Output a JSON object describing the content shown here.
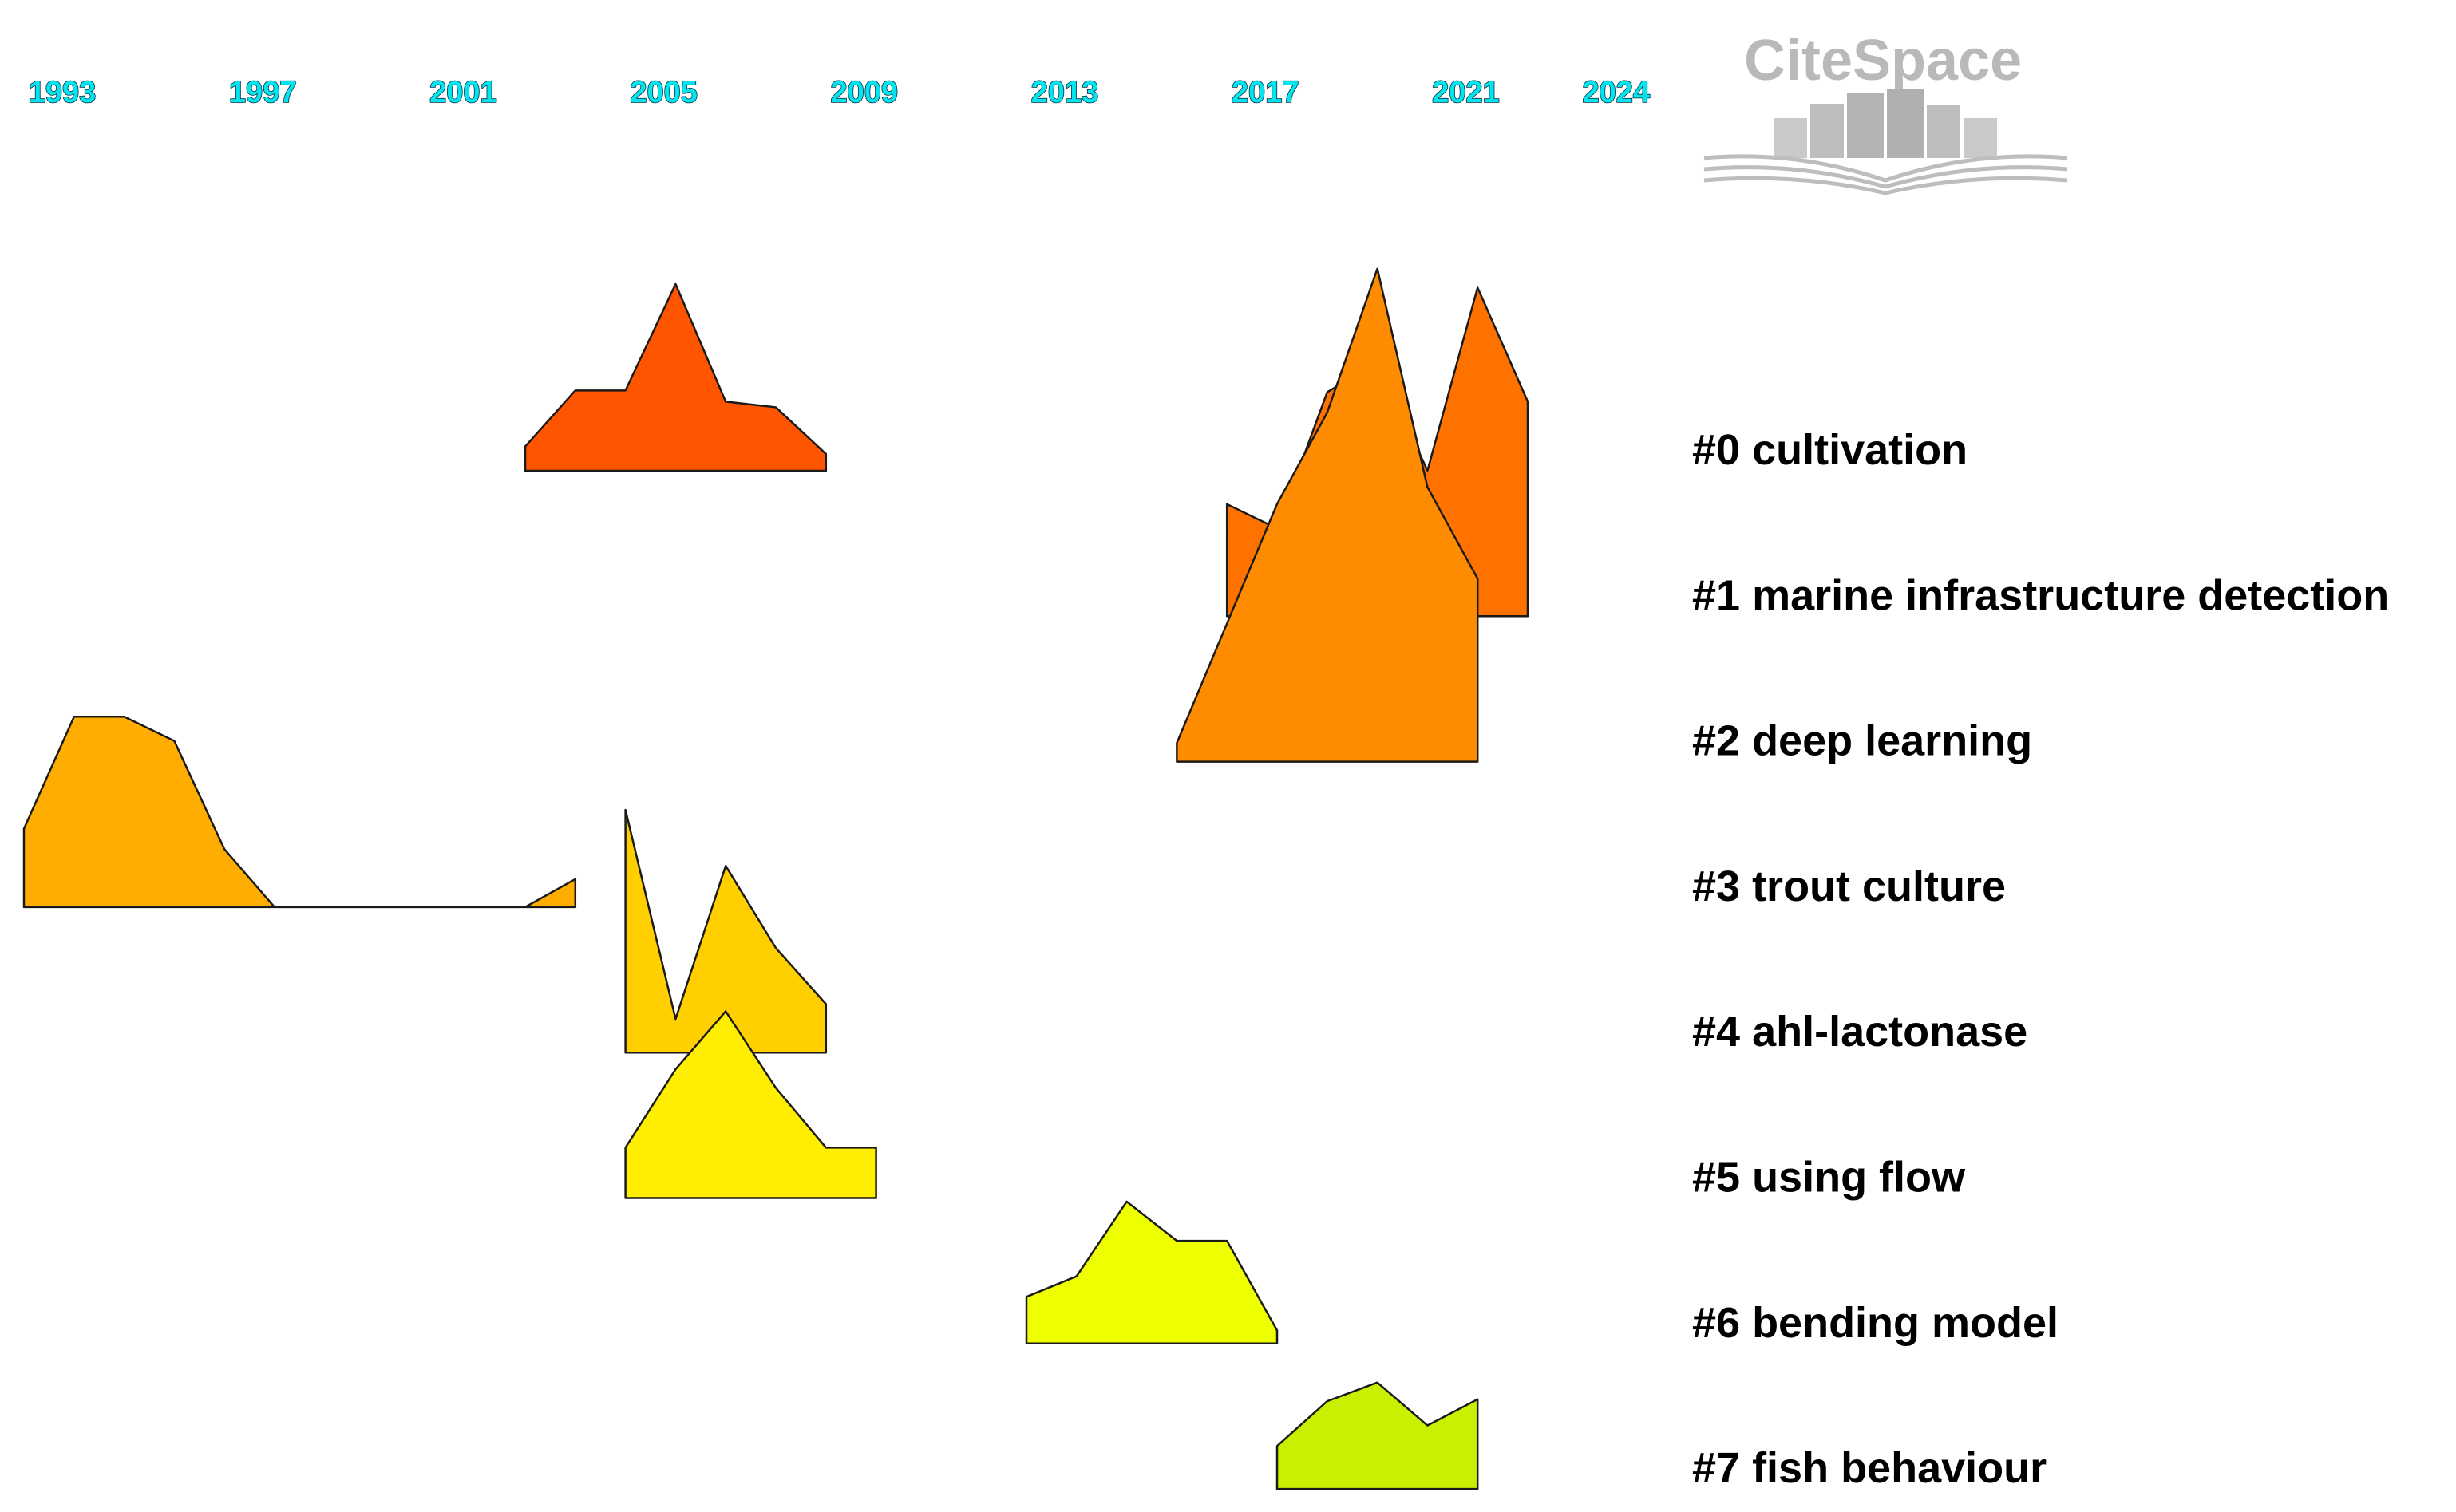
{
  "chart_data": {
    "type": "area",
    "title": "",
    "x_tick_labels": [
      "1993",
      "1997",
      "2001",
      "2005",
      "2009",
      "2013",
      "2017",
      "2021",
      "2024"
    ],
    "xlim": [
      1993,
      2025
    ],
    "series": [
      {
        "name": "#0 cultivation",
        "color": "#ff5500",
        "points": [
          [
            2003,
            0.13
          ],
          [
            2004,
            0.43
          ],
          [
            2005,
            0.43
          ],
          [
            2006,
            1.0
          ],
          [
            2007,
            0.37
          ],
          [
            2008,
            0.34
          ],
          [
            2009,
            0.09
          ],
          [
            2009,
            0.0
          ]
        ]
      },
      {
        "name": "#1 marine infrastructure detection",
        "color": "#ff7200",
        "points": [
          [
            2017,
            0.6
          ],
          [
            2018,
            0.47
          ],
          [
            2019,
            1.2
          ],
          [
            2020,
            1.36
          ],
          [
            2021,
            0.78
          ],
          [
            2022,
            1.76
          ],
          [
            2023,
            1.15
          ],
          [
            2023,
            0.0
          ]
        ]
      },
      {
        "name": "#2 deep learning",
        "color": "#ff8c00",
        "points": [
          [
            2016,
            0.1
          ],
          [
            2017,
            0.74
          ],
          [
            2018,
            1.38
          ],
          [
            2019,
            1.87
          ],
          [
            2020,
            2.64
          ],
          [
            2021,
            1.47
          ],
          [
            2022,
            0.98
          ],
          [
            2022,
            0.0
          ]
        ]
      },
      {
        "name": "#3 trout culture",
        "color": "#ffad00",
        "points": [
          [
            1993,
            0.42
          ],
          [
            1994,
            1.02
          ],
          [
            1995,
            1.02
          ],
          [
            1996,
            0.89
          ],
          [
            1997,
            0.31
          ],
          [
            1998,
            0.0
          ],
          [
            1999,
            0.0
          ],
          [
            2000,
            0.0
          ],
          [
            2001,
            0.0
          ],
          [
            2002,
            0.0
          ],
          [
            2003,
            0.0
          ],
          [
            2004,
            0.15
          ],
          [
            2004,
            0.0
          ]
        ]
      },
      {
        "name": "#4 ahl-lactonase",
        "color": "#ffcf00",
        "points": [
          [
            2005,
            1.3
          ],
          [
            2006,
            0.18
          ],
          [
            2007,
            1.0
          ],
          [
            2008,
            0.56
          ],
          [
            2009,
            0.26
          ],
          [
            2009,
            0.0
          ]
        ]
      },
      {
        "name": "#5 using flow",
        "color": "#ffee00",
        "points": [
          [
            2005,
            0.27
          ],
          [
            2006,
            0.69
          ],
          [
            2007,
            1.0
          ],
          [
            2008,
            0.59
          ],
          [
            2009,
            0.27
          ],
          [
            2010,
            0.27
          ],
          [
            2010,
            0.0
          ]
        ]
      },
      {
        "name": "#6 bending model",
        "color": "#eeff00",
        "points": [
          [
            2013,
            0.25
          ],
          [
            2014,
            0.36
          ],
          [
            2015,
            0.76
          ],
          [
            2016,
            0.55
          ],
          [
            2017,
            0.55
          ],
          [
            2018,
            0.07
          ],
          [
            2018,
            0.0
          ]
        ]
      },
      {
        "name": "#7 fish behaviour",
        "color": "#c8f000",
        "points": [
          [
            2018,
            0.23
          ],
          [
            2019,
            0.47
          ],
          [
            2020,
            0.57
          ],
          [
            2021,
            0.34
          ],
          [
            2022,
            0.48
          ],
          [
            2022,
            0.0
          ]
        ]
      }
    ],
    "cluster_labels": [
      "#0 cultivation",
      "#1 marine infrastructure detection",
      "#2 deep learning",
      "#3 trout culture",
      "#4 ahl-lactonase",
      "#5 using flow",
      "#6 bending model",
      "#7 fish behaviour"
    ],
    "grid": false,
    "legend": "none"
  },
  "logo": {
    "text": "CiteSpace",
    "color": "#b9b9b9"
  }
}
